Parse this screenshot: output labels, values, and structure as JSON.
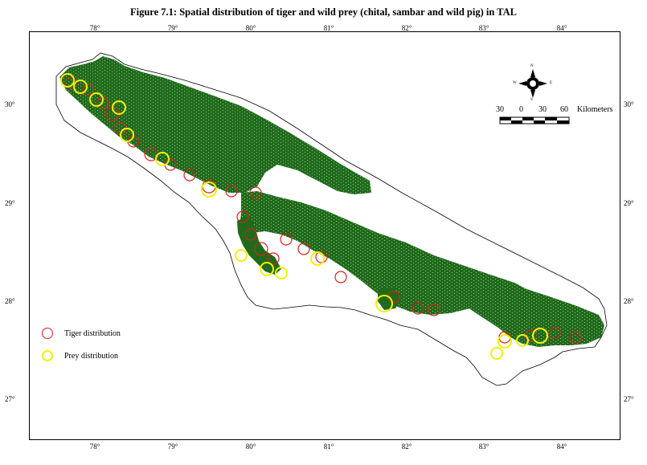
{
  "title": "Figure 7.1:   Spatial distribution of tiger and wild prey (chital, sambar and wild pig) in TAL",
  "longitude_ticks": [
    "78°",
    "79°",
    "80°",
    "81°",
    "82°",
    "83°",
    "84°"
  ],
  "latitude_ticks": [
    "30°",
    "29°",
    "28°",
    "27°"
  ],
  "legend": {
    "tiger": "Tiger distribution",
    "prey": "Prey distribution"
  },
  "scale_bar": {
    "labels": [
      "30",
      "0",
      "30",
      "60"
    ],
    "unit": "Kilometers"
  },
  "north_arrow": {
    "n": "N",
    "s": "S",
    "e": "E",
    "w": "W"
  },
  "colors": {
    "forest": "#1f6b1a",
    "tiger": "#d2231c",
    "prey": "#f2f200",
    "boundary": "#000000"
  }
}
